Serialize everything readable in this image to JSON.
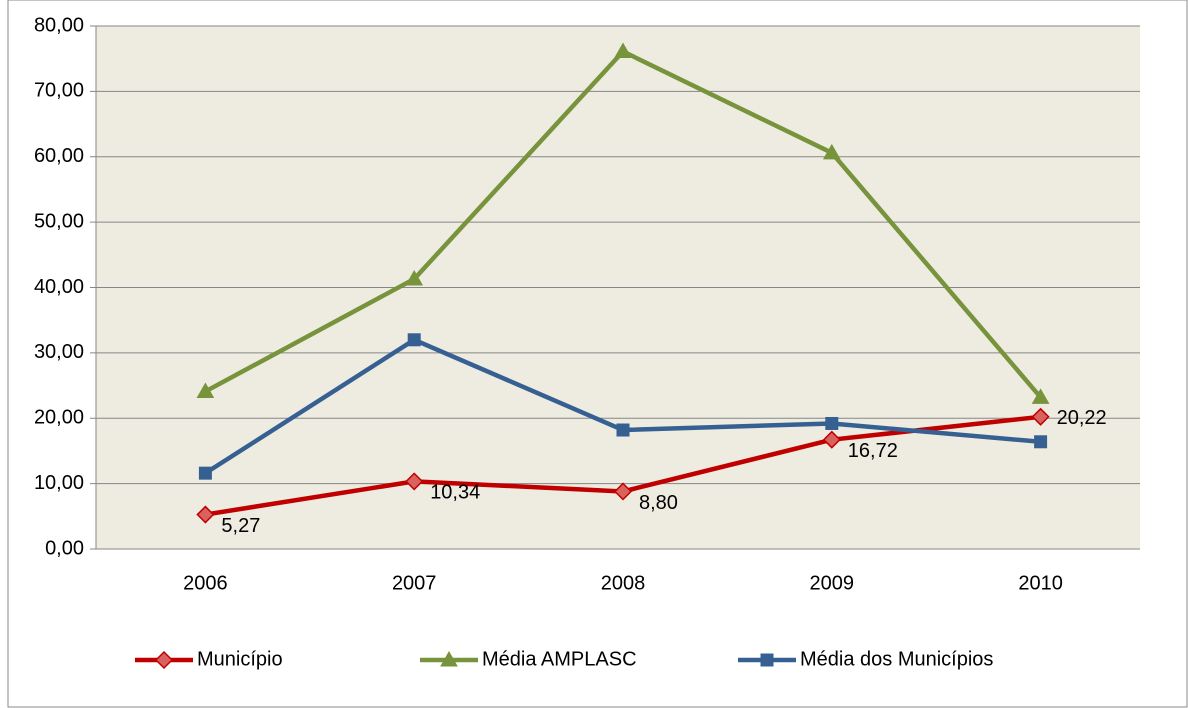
{
  "chart_data": {
    "type": "line",
    "categories": [
      "2006",
      "2007",
      "2008",
      "2009",
      "2010"
    ],
    "series": [
      {
        "name": "Município",
        "color": "#c00000",
        "marker": "diamond",
        "marker_color": "#d9625e",
        "values": [
          5.27,
          10.34,
          8.8,
          16.72,
          20.22
        ],
        "value_labels": [
          "5,27",
          "10,34",
          "8,80",
          "16,72",
          "20,22"
        ]
      },
      {
        "name": "Média AMPLASC",
        "color": "#77933c",
        "marker": "triangle",
        "marker_color": "#77933c",
        "values": [
          24.1,
          41.3,
          76.1,
          60.6,
          23.2
        ]
      },
      {
        "name": "Média dos Municípios",
        "color": "#376092",
        "marker": "square",
        "marker_color": "#376092",
        "values": [
          11.6,
          32.0,
          18.2,
          19.2,
          16.4
        ]
      }
    ],
    "ylim": [
      0,
      80
    ],
    "yticks": [
      {
        "value": 0,
        "label": "0,00"
      },
      {
        "value": 10,
        "label": "10,00"
      },
      {
        "value": 20,
        "label": "20,00"
      },
      {
        "value": 30,
        "label": "30,00"
      },
      {
        "value": 40,
        "label": "40,00"
      },
      {
        "value": 50,
        "label": "50,00"
      },
      {
        "value": 60,
        "label": "60,00"
      },
      {
        "value": 70,
        "label": "70,00"
      },
      {
        "value": 80,
        "label": "80,00"
      }
    ],
    "grid": true,
    "legend": "bottom"
  }
}
